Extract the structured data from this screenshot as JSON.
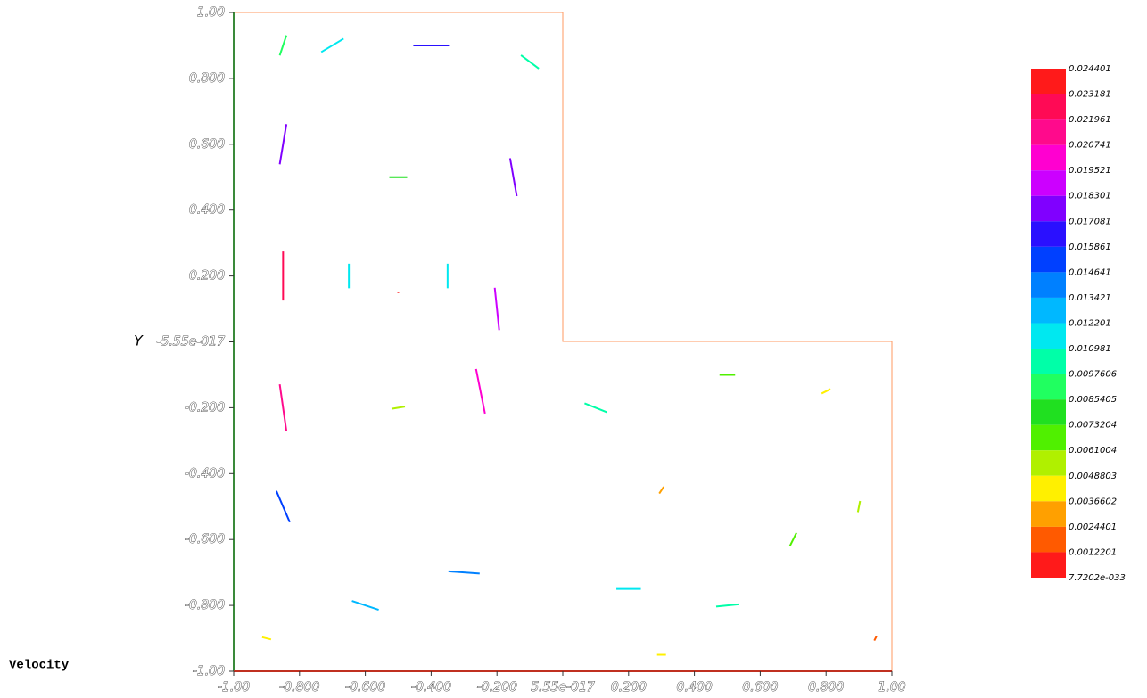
{
  "chart_data": {
    "type": "vector",
    "ylabel": "Y",
    "legend_title": "Velocity",
    "xlim": [
      -1,
      1
    ],
    "ylim": [
      -1,
      1
    ],
    "xticks": [
      {
        "value": -1,
        "label": "-1.00"
      },
      {
        "value": -0.8,
        "label": "-0.800"
      },
      {
        "value": -0.6,
        "label": "-0.600"
      },
      {
        "value": -0.4,
        "label": "-0.400"
      },
      {
        "value": -0.2,
        "label": "-0.200"
      },
      {
        "value": 5.55e-17,
        "label": "5.55e-017"
      },
      {
        "value": 0.2,
        "label": "0.200"
      },
      {
        "value": 0.4,
        "label": "0.400"
      },
      {
        "value": 0.6,
        "label": "0.600"
      },
      {
        "value": 0.8,
        "label": "0.800"
      },
      {
        "value": 1,
        "label": "1.00"
      }
    ],
    "yticks": [
      {
        "value": -1,
        "label": "-1.00"
      },
      {
        "value": -0.8,
        "label": "-0.800"
      },
      {
        "value": -0.6,
        "label": "-0.600"
      },
      {
        "value": -0.4,
        "label": "-0.400"
      },
      {
        "value": -0.2,
        "label": "-0.200"
      },
      {
        "value": -5.55e-17,
        "label": "-5.55e-017"
      },
      {
        "value": 0.2,
        "label": "0.200"
      },
      {
        "value": 0.4,
        "label": "0.400"
      },
      {
        "value": 0.6,
        "label": "0.600"
      },
      {
        "value": 0.8,
        "label": "0.800"
      },
      {
        "value": 1,
        "label": "1.00"
      }
    ],
    "x": [
      -0.85,
      -0.85,
      -0.85,
      -0.85,
      -0.7,
      -0.4,
      -0.1,
      -0.15,
      -0.2,
      -0.25,
      -0.5,
      -0.5,
      -0.5,
      -0.65,
      -0.35,
      -0.6,
      -0.3,
      0.1,
      0.2,
      0.5,
      0.5,
      0.8,
      0.9,
      0.7,
      0.3,
      -0.9,
      0.95,
      0.3,
      -0.85
    ],
    "y": [
      0.6,
      0.2,
      -0.2,
      -0.5,
      0.9,
      0.9,
      0.85,
      0.5,
      0.1,
      -0.15,
      0.15,
      0.5,
      -0.2,
      0.2,
      0.2,
      -0.8,
      -0.7,
      -0.2,
      -0.75,
      -0.8,
      -0.1,
      -0.15,
      -0.5,
      -0.6,
      -0.45,
      -0.9,
      -0.9,
      -0.95,
      0.9
    ],
    "u": [
      -0.003,
      0,
      0.003,
      0.006,
      -0.01,
      -0.016,
      -0.008,
      -0.003,
      -0.002,
      -0.004,
      0,
      -0.008,
      0.006,
      0,
      0,
      0.012,
      0.014,
      0.01,
      0.011,
      0.01,
      -0.007,
      -0.004,
      0.001,
      0.003,
      0.002,
      0.004,
      0.001,
      0.004,
      -0.003
    ],
    "v": [
      -0.018,
      -0.022,
      -0.021,
      -0.014,
      -0.006,
      0,
      0.006,
      0.017,
      0.019,
      0.02,
      0.0005,
      0,
      0.001,
      -0.011,
      0.011,
      -0.004,
      -0.001,
      -0.004,
      0,
      0.001,
      0,
      -0.002,
      0.005,
      0.006,
      0.003,
      -0.001,
      0.002,
      0,
      -0.009
    ],
    "colorbar": {
      "ticks": [
        0.024401,
        0.023181,
        0.021961,
        0.020741,
        0.019521,
        0.018301,
        0.017081,
        0.015861,
        0.014641,
        0.013421,
        0.012201,
        0.010981,
        0.0097606,
        0.0085405,
        0.0073204,
        0.0061004,
        0.0048803,
        0.0036602,
        0.0024401,
        0.0012201,
        {
          "value": 7.7202e-33,
          "label": "7.7202e-033"
        }
      ],
      "colors": [
        "#ff1a1a",
        "#ff0a55",
        "#ff0a8c",
        "#ff00d0",
        "#cc00ff",
        "#8000ff",
        "#2a10ff",
        "#0040ff",
        "#0080ff",
        "#00b8ff",
        "#00e8f0",
        "#00ffa8",
        "#20ff60",
        "#20e020",
        "#50f000",
        "#b0f000",
        "#fff000",
        "#ffa000",
        "#ff5a00",
        "#ff1a1a"
      ]
    }
  }
}
